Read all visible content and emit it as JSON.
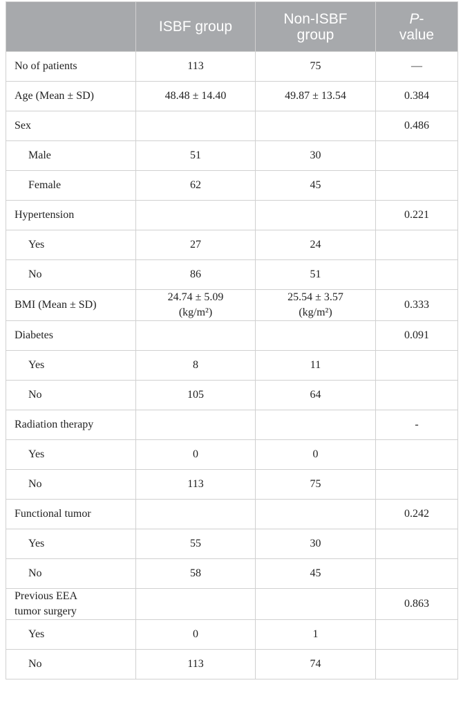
{
  "table": {
    "header": [
      "",
      "ISBF group",
      "Non-ISBF group",
      "P-value"
    ],
    "rows": [
      {
        "label": "No of patients",
        "isbf": "113",
        "non_isbf": "75",
        "p": "—",
        "level": 0
      },
      {
        "label": "Age (Mean ± SD)",
        "isbf": "48.48 ± 14.40",
        "non_isbf": "49.87 ± 13.54",
        "p": "0.384",
        "level": 0
      },
      {
        "label": "Sex",
        "isbf": null,
        "non_isbf": null,
        "p": "0.486",
        "level": 0
      },
      {
        "label": "Male",
        "isbf": "51",
        "non_isbf": "30",
        "p": null,
        "level": 1
      },
      {
        "label": "Female",
        "isbf": "62",
        "non_isbf": "45",
        "p": null,
        "level": 1
      },
      {
        "label": "Hypertension",
        "isbf": null,
        "non_isbf": null,
        "p": "0.221",
        "level": 0
      },
      {
        "label": "Yes",
        "isbf": "27",
        "non_isbf": "24",
        "p": null,
        "level": 1
      },
      {
        "label": "No",
        "isbf": "86",
        "non_isbf": "51",
        "p": null,
        "level": 1
      },
      {
        "label": "BMI (Mean ± SD)",
        "isbf": "24.74 ± 5.09\n(kg/m²)",
        "non_isbf": "25.54 ± 3.57\n(kg/m²)",
        "p": "0.333",
        "level": 0
      },
      {
        "label": "Diabetes",
        "isbf": null,
        "non_isbf": null,
        "p": "0.091",
        "level": 0
      },
      {
        "label": "Yes",
        "isbf": "8",
        "non_isbf": "11",
        "p": null,
        "level": 1
      },
      {
        "label": "No",
        "isbf": "105",
        "non_isbf": "64",
        "p": null,
        "level": 1
      },
      {
        "label": "Radiation therapy",
        "isbf": null,
        "non_isbf": null,
        "p": "-",
        "level": 0
      },
      {
        "label": "Yes",
        "isbf": "0",
        "non_isbf": "0",
        "p": null,
        "level": 1
      },
      {
        "label": "No",
        "isbf": "113",
        "non_isbf": "75",
        "p": null,
        "level": 1
      },
      {
        "label": "Functional tumor",
        "isbf": null,
        "non_isbf": null,
        "p": "0.242",
        "level": 0
      },
      {
        "label": "Yes",
        "isbf": "55",
        "non_isbf": "30",
        "p": null,
        "level": 1
      },
      {
        "label": "No",
        "isbf": "58",
        "non_isbf": "45",
        "p": null,
        "level": 1
      },
      {
        "label": "Previous EEA\ntumor surgery",
        "isbf": null,
        "non_isbf": null,
        "p": "0.863",
        "level": 0
      },
      {
        "label": "Yes",
        "isbf": "0",
        "non_isbf": "1",
        "p": null,
        "level": 1
      },
      {
        "label": "No",
        "isbf": "113",
        "non_isbf": "74",
        "p": null,
        "level": 1
      }
    ]
  }
}
